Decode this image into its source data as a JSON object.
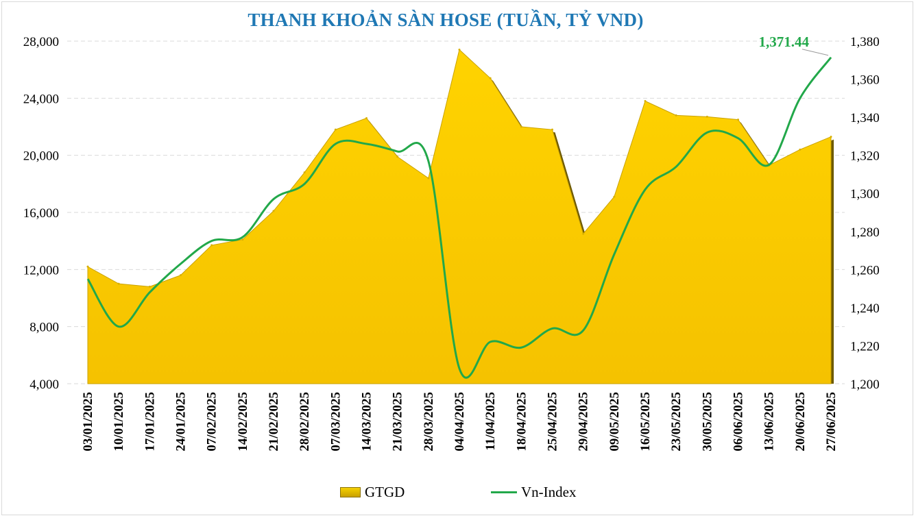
{
  "chart_data": {
    "type": "area+line",
    "title": "THANH KHOẢN SÀN HOSE (TUẦN, TỶ VND)",
    "categories": [
      "03/01/2025",
      "10/01/2025",
      "17/01/2025",
      "24/01/2025",
      "07/02/2025",
      "14/02/2025",
      "21/02/2025",
      "28/02/2025",
      "07/03/2025",
      "14/03/2025",
      "21/03/2025",
      "28/03/2025",
      "04/04/2025",
      "11/04/2025",
      "18/04/2025",
      "25/04/2025",
      "29/04/2025",
      "09/05/2025",
      "16/05/2025",
      "23/05/2025",
      "30/05/2025",
      "06/06/2025",
      "13/06/2025",
      "20/06/2025",
      "27/06/2025"
    ],
    "series": [
      {
        "name": "GTGD",
        "axis": "left",
        "type": "area",
        "color": "#f7c600",
        "values": [
          12200,
          11000,
          10800,
          11600,
          13700,
          14100,
          16100,
          18800,
          21800,
          22600,
          19900,
          18400,
          27400,
          25400,
          22000,
          21800,
          14500,
          17100,
          23800,
          22800,
          22700,
          22500,
          19300,
          20400,
          21300
        ]
      },
      {
        "name": "Vn-Index",
        "axis": "right",
        "type": "line",
        "color": "#22a84a",
        "values": [
          1255,
          1230,
          1248,
          1263,
          1275,
          1277,
          1297,
          1305,
          1326,
          1326,
          1322,
          1317,
          1208,
          1222,
          1219,
          1229,
          1228,
          1268,
          1302,
          1314,
          1332,
          1329,
          1315,
          1350,
          1371.44
        ]
      }
    ],
    "left_axis": {
      "min": 4000,
      "max": 28000,
      "ticks": [
        "4,000",
        "8,000",
        "12,000",
        "16,000",
        "20,000",
        "24,000",
        "28,000"
      ]
    },
    "right_axis": {
      "min": 1200,
      "max": 1380,
      "ticks": [
        "1,200",
        "1,220",
        "1,240",
        "1,260",
        "1,280",
        "1,300",
        "1,320",
        "1,340",
        "1,360",
        "1,380"
      ]
    },
    "last_value_label": "1,371.44",
    "legend": [
      "GTGD",
      "Vn-Index"
    ],
    "legend_position": "bottom"
  }
}
